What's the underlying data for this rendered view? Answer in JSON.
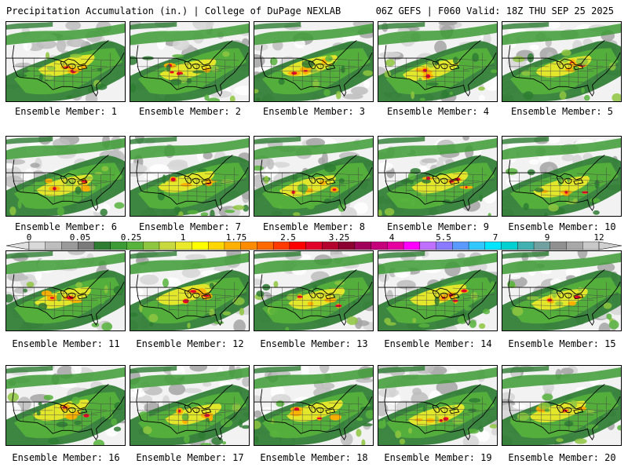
{
  "header": {
    "left_title": "Precipitation Accumulation (in.) | College of DuPage NEXLAB",
    "right_title": "06Z GEFS | F060 Valid: 18Z THU SEP 25 2025"
  },
  "colorbar": {
    "labels": [
      "0",
      "0.05",
      "0.25",
      "1",
      "1.75",
      "2.5",
      "3.25",
      "4",
      "5.5",
      "7",
      "9",
      "12"
    ],
    "colors": [
      "#d9d9d9",
      "#bdbdbd",
      "#9a9a9a",
      "#7a7a7a",
      "#2e7d32",
      "#3d9b35",
      "#57b33c",
      "#8ec63f",
      "#c8d93f",
      "#eaea2a",
      "#ffff00",
      "#ffd700",
      "#ffb000",
      "#ff8c00",
      "#ff6a00",
      "#ff3b00",
      "#ff0000",
      "#e0002a",
      "#b4002d",
      "#8b0030",
      "#a0005a",
      "#c4007a",
      "#e600a0",
      "#ff00ff",
      "#c070ff",
      "#8a7aff",
      "#5a9aff",
      "#30c8ff",
      "#00e5ff",
      "#00d0d0",
      "#40b0b0",
      "#70a0a0",
      "#909090",
      "#a8a8a8",
      "#c8c8c8"
    ]
  },
  "panels": [
    {
      "caption": "Ensemble Member: 1",
      "member": 1
    },
    {
      "caption": "Ensemble Member: 2",
      "member": 2
    },
    {
      "caption": "Ensemble Member: 3",
      "member": 3
    },
    {
      "caption": "Ensemble Member: 4",
      "member": 4
    },
    {
      "caption": "Ensemble Member: 5",
      "member": 5
    },
    {
      "caption": "Ensemble Member: 6",
      "member": 6
    },
    {
      "caption": "Ensemble Member: 7",
      "member": 7
    },
    {
      "caption": "Ensemble Member: 8",
      "member": 8
    },
    {
      "caption": "Ensemble Member: 9",
      "member": 9
    },
    {
      "caption": "Ensemble Member: 10",
      "member": 10
    },
    {
      "caption": "Ensemble Member: 11",
      "member": 11
    },
    {
      "caption": "Ensemble Member: 12",
      "member": 12
    },
    {
      "caption": "Ensemble Member: 13",
      "member": 13
    },
    {
      "caption": "Ensemble Member: 14",
      "member": 14
    },
    {
      "caption": "Ensemble Member: 15",
      "member": 15
    },
    {
      "caption": "Ensemble Member: 16",
      "member": 16
    },
    {
      "caption": "Ensemble Member: 17",
      "member": 17
    },
    {
      "caption": "Ensemble Member: 18",
      "member": 18
    },
    {
      "caption": "Ensemble Member: 19",
      "member": 19
    },
    {
      "caption": "Ensemble Member: 20",
      "member": 20
    }
  ]
}
